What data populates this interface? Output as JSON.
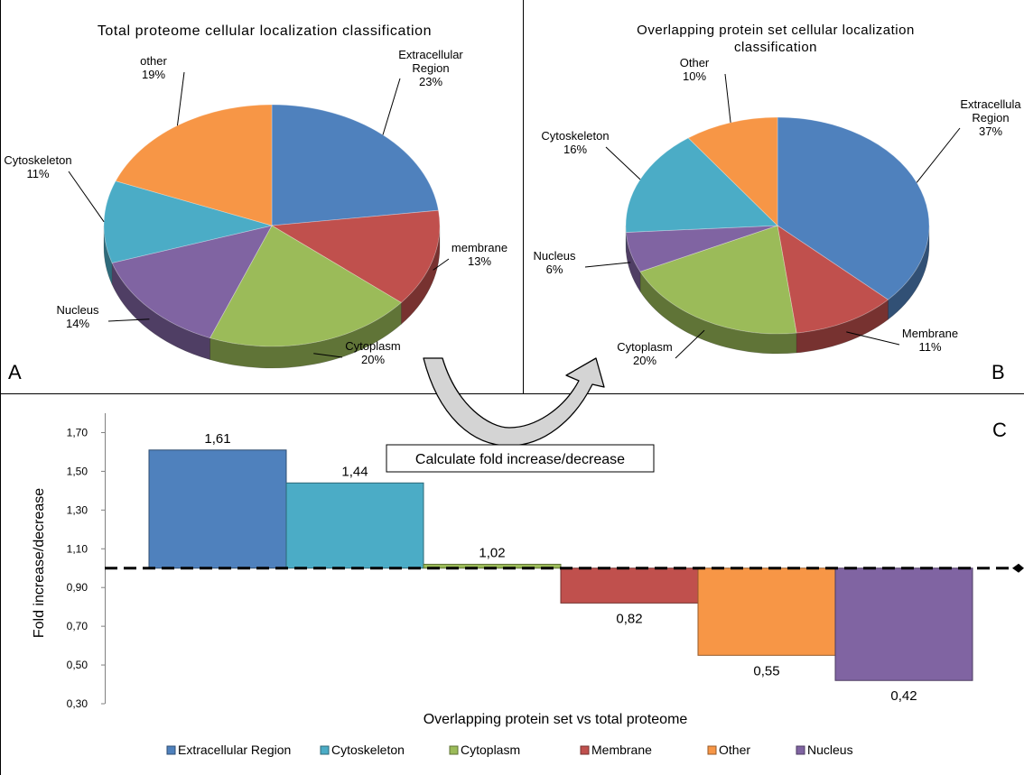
{
  "panel_letters": {
    "a": "A",
    "b": "B",
    "c": "C"
  },
  "arrow_label": "Calculate fold increase/decrease",
  "chart_data": [
    {
      "type": "pie",
      "title": "Total proteome cellular localization classification",
      "slices": [
        {
          "label": "Extracellular Region",
          "label_lines": [
            "Extracellular",
            "Region"
          ],
          "value": 23,
          "display": "23%",
          "color": "#4f81bd"
        },
        {
          "label": "membrane",
          "label_lines": [
            "membrane"
          ],
          "value": 13,
          "display": "13%",
          "color": "#c0504d"
        },
        {
          "label": "Cytoplasm",
          "label_lines": [
            "Cytoplasm"
          ],
          "value": 20,
          "display": "20%",
          "color": "#9bbb59"
        },
        {
          "label": "Nucleus",
          "label_lines": [
            "Nucleus"
          ],
          "value": 14,
          "display": "14%",
          "color": "#8064a2"
        },
        {
          "label": "Cytoskeleton",
          "label_lines": [
            "Cytoskeleton"
          ],
          "value": 11,
          "display": "11%",
          "color": "#4bacc6"
        },
        {
          "label": "other",
          "label_lines": [
            "other"
          ],
          "value": 19,
          "display": "19%",
          "color": "#f79646"
        }
      ]
    },
    {
      "type": "pie",
      "title": "Overlapping protein set cellular localization classification",
      "title_lines": [
        "Overlapping protein set cellular localization",
        "classification"
      ],
      "slices": [
        {
          "label": "Extracellular Region",
          "label_lines": [
            "Extracellula",
            "Region"
          ],
          "value": 37,
          "display": "37%",
          "color": "#4f81bd"
        },
        {
          "label": "Membrane",
          "label_lines": [
            "Membrane"
          ],
          "value": 11,
          "display": "11%",
          "color": "#c0504d"
        },
        {
          "label": "Cytoplasm",
          "label_lines": [
            "Cytoplasm"
          ],
          "value": 20,
          "display": "20%",
          "color": "#9bbb59"
        },
        {
          "label": "Nucleus",
          "label_lines": [
            "Nucleus"
          ],
          "value": 6,
          "display": "6%",
          "color": "#8064a2"
        },
        {
          "label": "Cytoskeleton",
          "label_lines": [
            "Cytoskeleton"
          ],
          "value": 16,
          "display": "16%",
          "color": "#4bacc6"
        },
        {
          "label": "Other",
          "label_lines": [
            "Other"
          ],
          "value": 10,
          "display": "10%",
          "color": "#f79646"
        }
      ]
    },
    {
      "type": "bar",
      "xlabel": "Overlapping protein set vs total proteome",
      "ylabel": "Fold increase/decrease",
      "ylim": [
        0.3,
        1.8
      ],
      "yticks": [
        "1,70",
        "1,50",
        "1,30",
        "1,10",
        "0,90",
        "0,70",
        "0,50",
        "0,30"
      ],
      "ytick_values": [
        1.7,
        1.5,
        1.3,
        1.1,
        0.9,
        0.7,
        0.5,
        0.3
      ],
      "reference_line": 1.0,
      "series": [
        {
          "name": "Extracellular Region",
          "value": 1.61,
          "display": "1,61",
          "color": "#4f81bd"
        },
        {
          "name": "Cytoskeleton",
          "value": 1.44,
          "display": "1,44",
          "color": "#4bacc6"
        },
        {
          "name": "Cytoplasm",
          "value": 1.02,
          "display": "1,02",
          "color": "#9bbb59"
        },
        {
          "name": "Membrane",
          "value": 0.82,
          "display": "0,82",
          "color": "#c0504d"
        },
        {
          "name": "Other",
          "value": 0.55,
          "display": "0,55",
          "color": "#f79646"
        },
        {
          "name": "Nucleus",
          "value": 0.42,
          "display": "0,42",
          "color": "#8064a2"
        }
      ]
    }
  ]
}
